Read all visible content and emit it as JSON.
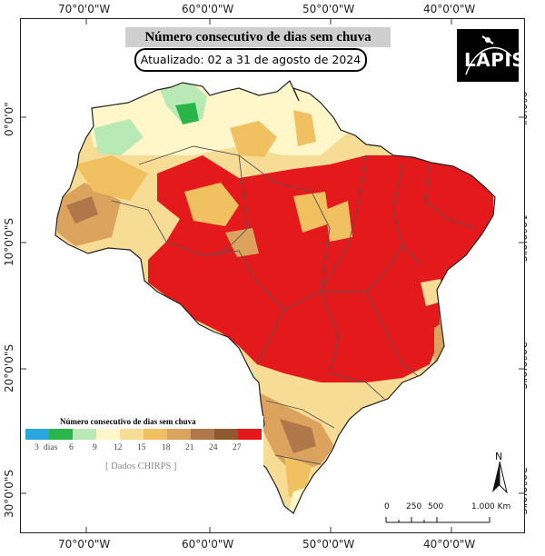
{
  "map": {
    "title": "Número consecutivo de dias sem chuva",
    "updated": "Atualizado: 02 a 31 de agosto de 2024",
    "logo": "LAPIS",
    "longitude_labels": [
      "70°0'0\"W",
      "60°0'0\"W",
      "50°0'0\"W",
      "40°0'0\"W"
    ],
    "latitude_labels": [
      "0°0'0\"",
      "10°0'0\"S",
      "20°0'0\"S",
      "30°0'0\"S"
    ]
  },
  "legend": {
    "title": "Número consecutivo de dias sem chuva",
    "classes": [
      {
        "label": "3",
        "color": "#29a8e0"
      },
      {
        "label": "6",
        "color": "#2ab548"
      },
      {
        "label": "9",
        "color": "#b9eab5"
      },
      {
        "label": "12",
        "color": "#fff6c9"
      },
      {
        "label": "15",
        "color": "#f7dc96"
      },
      {
        "label": "18",
        "color": "#f1c061"
      },
      {
        "label": "21",
        "color": "#dca35e"
      },
      {
        "label": "24",
        "color": "#b0784a"
      },
      {
        "label": "27",
        "color": "#8e5a2e"
      },
      {
        "label": "",
        "color": "#e3191c"
      }
    ],
    "first_tick_suffix": "dias",
    "source": "[ Dados CHIRPS ]"
  },
  "scale_bar": {
    "labels": [
      "0",
      "250",
      "500",
      "1.000 Km"
    ]
  },
  "north_arrow": {
    "label": "N",
    "icon": "north-arrow-icon"
  }
}
